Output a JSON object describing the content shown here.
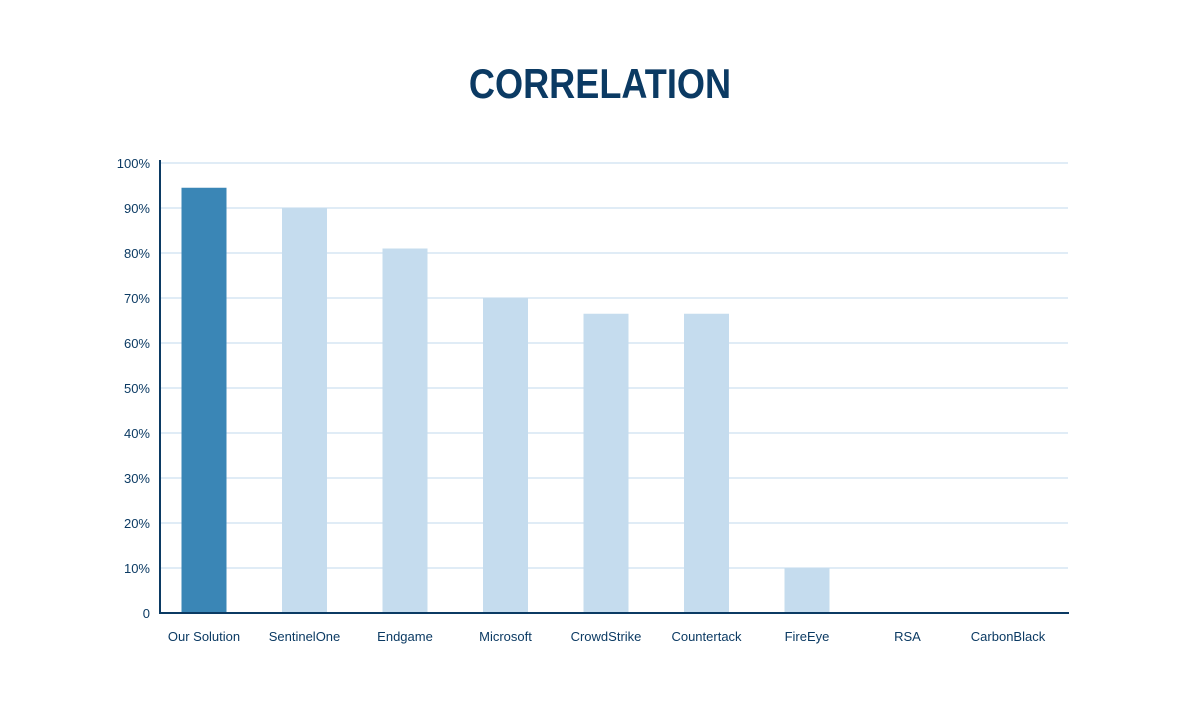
{
  "chart_data": {
    "type": "bar",
    "title": "CORRELATION",
    "xlabel": "",
    "ylabel": "",
    "categories": [
      "Our Solution",
      "SentinelOne",
      "Endgame",
      "Microsoft",
      "CrowdStrike",
      "Countertack",
      "FireEye",
      "RSA",
      "CarbonBlack"
    ],
    "values": [
      94.5,
      90,
      81,
      70,
      66.5,
      66.5,
      10,
      0,
      0
    ],
    "ylim": [
      0,
      100
    ],
    "yticks": [
      0,
      10,
      20,
      30,
      40,
      50,
      60,
      70,
      80,
      90,
      100
    ],
    "ytick_labels": [
      "0",
      "10%",
      "20%",
      "30%",
      "40%",
      "50%",
      "60%",
      "70%",
      "80%",
      "90%",
      "100%"
    ],
    "grid": true,
    "legend": "none",
    "colors": {
      "highlight": "#3a86b6",
      "bar": "#c5dcee",
      "grid": "#d6e6f3",
      "axis": "#0b3a63",
      "text": "#0b3a63"
    },
    "highlight_index": 0
  }
}
